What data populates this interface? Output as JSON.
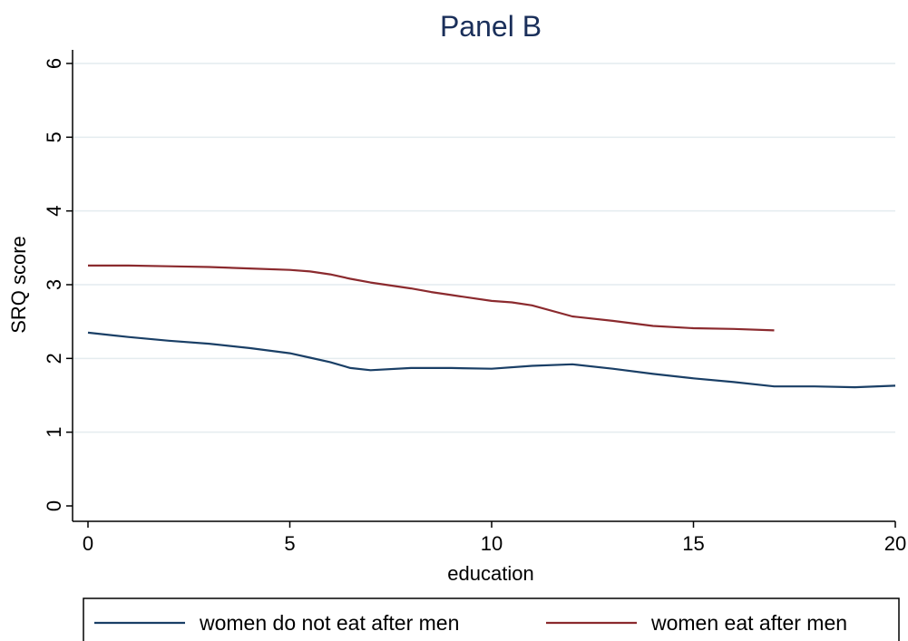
{
  "chart_data": {
    "type": "line",
    "title": "Panel B",
    "xlabel": "education",
    "ylabel": "SRQ score",
    "xlim": [
      0,
      20
    ],
    "ylim": [
      0,
      6
    ],
    "xticks": [
      0,
      5,
      10,
      15,
      20
    ],
    "yticks": [
      0,
      1,
      2,
      3,
      4,
      5,
      6
    ],
    "grid": "horizontal",
    "legend_position": "bottom",
    "colors": {
      "series_0": "#1a3f66",
      "series_1": "#8b2a2e",
      "grid": "#e4ecef",
      "title": "#1a2f5a"
    },
    "series": [
      {
        "name": "women do not eat after men",
        "x": [
          0,
          1,
          2,
          3,
          4,
          5,
          5.5,
          6,
          6.5,
          7,
          8,
          9,
          10,
          11,
          12,
          13,
          14,
          15,
          16,
          17,
          18,
          19,
          20
        ],
        "y": [
          2.35,
          2.29,
          2.24,
          2.2,
          2.14,
          2.07,
          2.01,
          1.95,
          1.87,
          1.84,
          1.87,
          1.87,
          1.86,
          1.9,
          1.92,
          1.86,
          1.79,
          1.73,
          1.68,
          1.62,
          1.62,
          1.61,
          1.63
        ]
      },
      {
        "name": "women eat after men",
        "x": [
          0,
          1,
          2,
          3,
          4,
          5,
          5.5,
          6,
          6.5,
          7,
          8,
          8.5,
          9,
          10,
          10.5,
          11,
          12,
          13,
          14,
          15,
          16,
          17
        ],
        "y": [
          3.26,
          3.26,
          3.25,
          3.24,
          3.22,
          3.2,
          3.18,
          3.14,
          3.08,
          3.03,
          2.95,
          2.9,
          2.86,
          2.78,
          2.76,
          2.72,
          2.57,
          2.51,
          2.44,
          2.41,
          2.4,
          2.38
        ]
      }
    ]
  }
}
